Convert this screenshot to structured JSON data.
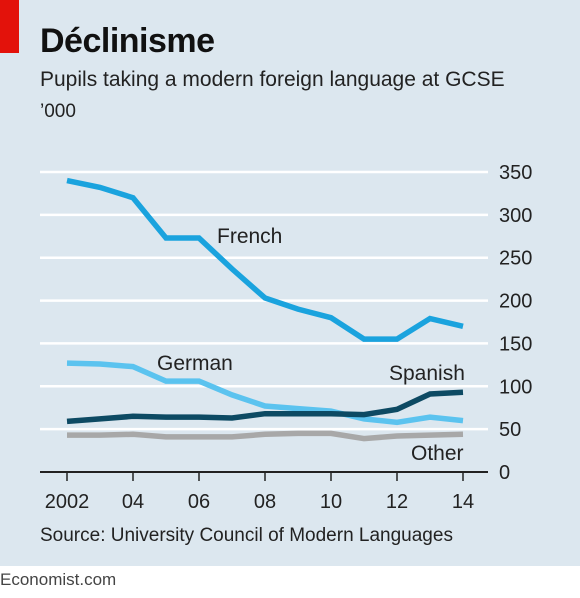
{
  "title": "Déclinisme",
  "subtitle": "Pupils taking a modern foreign language at GCSE",
  "unit": "’000",
  "source": "Source: University Council of Modern Languages",
  "credit": "Economist.com",
  "colors": {
    "background": "#dce7ef",
    "grid": "#ffffff",
    "axis": "#222222",
    "tag": "#e3120b"
  },
  "chart_data": {
    "type": "line",
    "x": [
      2002,
      2003,
      2004,
      2005,
      2006,
      2007,
      2008,
      2009,
      2010,
      2011,
      2012,
      2013,
      2014
    ],
    "x_tick_values": [
      2002,
      2004,
      2006,
      2008,
      2010,
      2012,
      2014
    ],
    "x_tick_labels": [
      "2002",
      "04",
      "06",
      "08",
      "10",
      "12",
      "14"
    ],
    "y_ticks": [
      0,
      50,
      100,
      150,
      200,
      250,
      300,
      350
    ],
    "ylim": [
      0,
      350
    ],
    "y_axis_position": "right",
    "grid": true,
    "legend": "inline labels",
    "series": [
      {
        "name": "French",
        "color": "#1aa3de",
        "values": [
          340,
          332,
          320,
          273,
          273,
          237,
          203,
          190,
          180,
          155,
          155,
          179,
          170
        ]
      },
      {
        "name": "German",
        "color": "#5bc3ef",
        "values": [
          127,
          126,
          123,
          106,
          106,
          90,
          77,
          74,
          71,
          62,
          58,
          64,
          60
        ]
      },
      {
        "name": "Spanish",
        "color": "#0d4a63",
        "values": [
          59,
          62,
          65,
          64,
          64,
          63,
          68,
          68,
          68,
          67,
          73,
          91,
          93
        ]
      },
      {
        "name": "Other",
        "color": "#a8a8a8",
        "values": [
          43,
          43,
          44,
          41,
          41,
          41,
          44,
          45,
          45,
          39,
          42,
          43,
          44
        ]
      }
    ]
  }
}
